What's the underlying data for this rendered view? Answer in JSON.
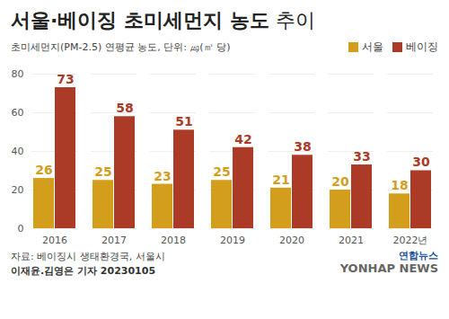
{
  "chart_data": {
    "type": "bar",
    "title": "서울·베이징 초미세먼지 농도",
    "title_suffix": "추이",
    "subtitle": "초미세먼지(PM-2.5) 연평균 농도, 단위: ㎍(㎥ 당)",
    "categories": [
      "2016",
      "2017",
      "2018",
      "2019",
      "2020",
      "2021",
      "2022년"
    ],
    "series": [
      {
        "name": "서울",
        "color": "#d39e1c",
        "values": [
          26,
          25,
          23,
          25,
          21,
          20,
          18
        ]
      },
      {
        "name": "베이징",
        "color": "#ab3a26",
        "values": [
          73,
          58,
          51,
          42,
          38,
          33,
          30
        ]
      }
    ],
    "ylim": [
      0,
      80
    ],
    "yticks": [
      0,
      20,
      40,
      60,
      80
    ],
    "grid": true,
    "legend": "top-right",
    "data_labels": true,
    "source": "자료: 베이징시 생태환경국, 서울시",
    "byline": "이재윤.김영은 기자  20230105",
    "logo": [
      "연합뉴스",
      "YONHAP NEWS"
    ]
  }
}
